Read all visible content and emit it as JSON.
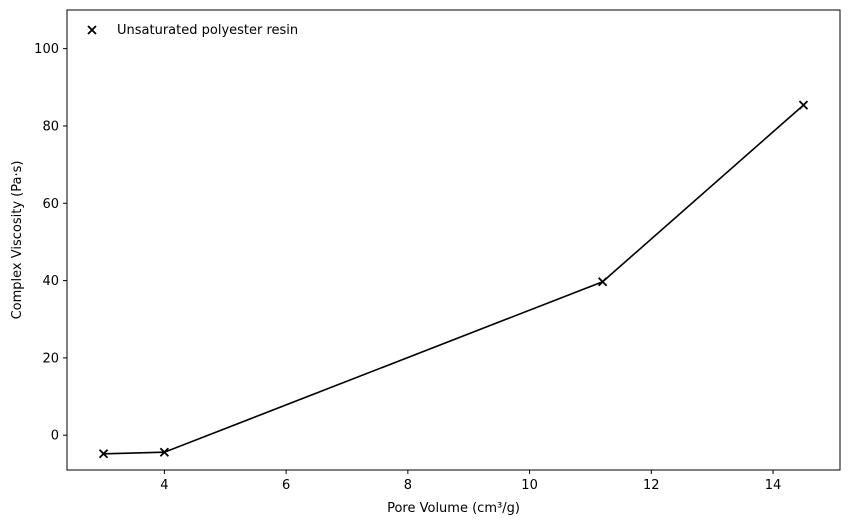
{
  "chart_data": {
    "type": "line",
    "title": "",
    "xlabel": "Pore Volume (cm³/g)",
    "ylabel": "Complex Viscosity (Pa·s)",
    "xlim": [
      2.4,
      15.1
    ],
    "ylim": [
      -9,
      110
    ],
    "xticks": [
      4,
      6,
      8,
      10,
      12,
      14
    ],
    "yticks": [
      0,
      20,
      40,
      60,
      80,
      100
    ],
    "grid": false,
    "legend_position": "top-left",
    "series": [
      {
        "name": "Unsaturated polyester resin",
        "marker": "x",
        "color": "#000000",
        "x": [
          3.0,
          4.0,
          11.2,
          14.5
        ],
        "y": [
          -4.8,
          -4.4,
          39.7,
          85.4
        ]
      }
    ]
  }
}
